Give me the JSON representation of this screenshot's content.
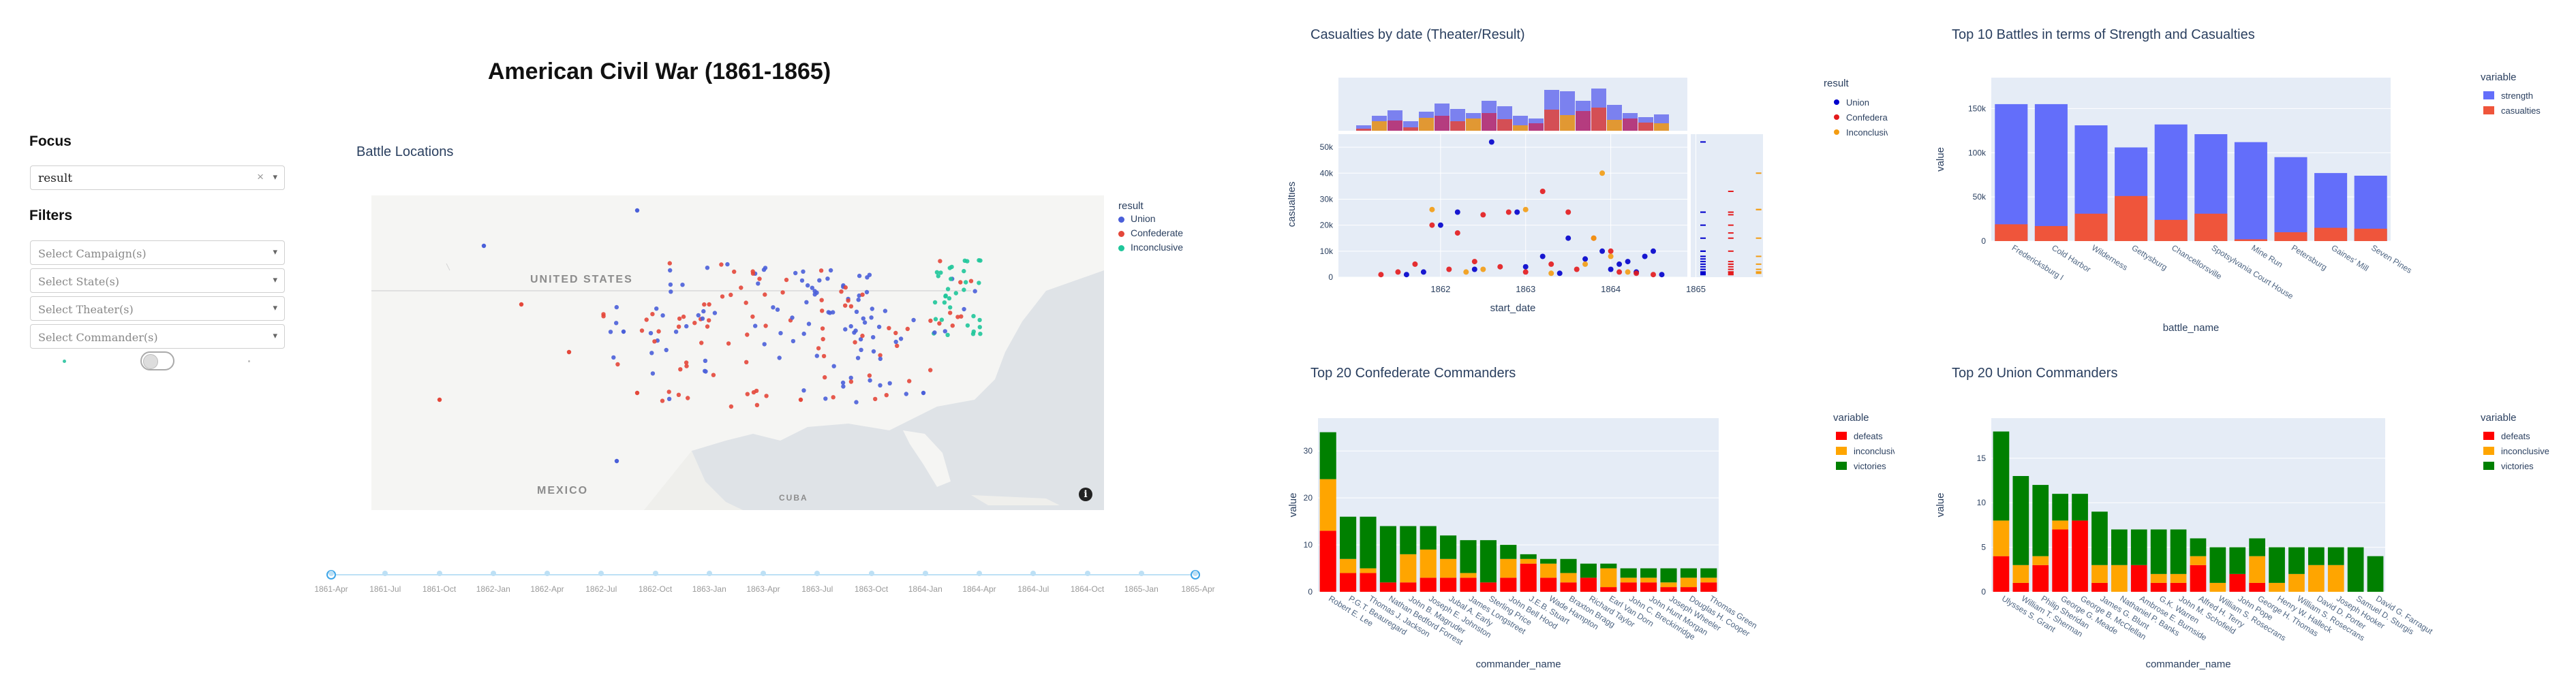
{
  "page": {
    "title": "American Civil War (1861-1865)"
  },
  "sidebar": {
    "focus_heading": "Focus",
    "focus_value": "result",
    "filters_heading": "Filters",
    "filters": [
      {
        "placeholder": "Select Campaign(s)"
      },
      {
        "placeholder": "Select State(s)"
      },
      {
        "placeholder": "Select Theater(s)"
      },
      {
        "placeholder": "Select Commander(s)"
      }
    ],
    "clear_glyph": "×",
    "caret_glyph": "▾"
  },
  "map": {
    "title": "Battle Locations",
    "labels": {
      "us": "UNITED STATES",
      "mexico": "MEXICO",
      "cuba": "CUBA"
    },
    "legend_title": "result",
    "legend": [
      {
        "name": "Union",
        "color": "#4a5fd9"
      },
      {
        "name": "Confederate",
        "color": "#e4473a"
      },
      {
        "name": "Inconclusive",
        "color": "#1fc69a"
      }
    ],
    "info_glyph": "i"
  },
  "timeline": {
    "ticks": [
      "1861-Apr",
      "1861-Jul",
      "1861-Oct",
      "1862-Jan",
      "1862-Apr",
      "1862-Jul",
      "1862-Oct",
      "1863-Jan",
      "1863-Apr",
      "1863-Jul",
      "1863-Oct",
      "1864-Jan",
      "1864-Apr",
      "1864-Jul",
      "1864-Oct",
      "1865-Jan",
      "1865-Apr"
    ]
  },
  "chart_data": [
    {
      "type": "scatter",
      "title": "Casualties by date (Theater/Result)",
      "xlabel": "start_date",
      "ylabel": "casualties",
      "x_ticks": [
        "1862",
        "1863",
        "1864",
        "1865"
      ],
      "y_ticks": [
        "0",
        "10k",
        "20k",
        "30k",
        "40k",
        "50k"
      ],
      "ylim": [
        0,
        55000
      ],
      "legend_title": "result",
      "series": [
        {
          "name": "Union",
          "color": "#0000cc",
          "points": [
            [
              1862.5,
              20000
            ],
            [
              1862.7,
              25000
            ],
            [
              1863.1,
              52000
            ],
            [
              1863.4,
              25000
            ],
            [
              1863.7,
              8000
            ],
            [
              1864.0,
              15000
            ],
            [
              1864.2,
              7000
            ],
            [
              1864.4,
              10000
            ],
            [
              1864.7,
              6000
            ],
            [
              1864.9,
              8000
            ],
            [
              1865.0,
              10000
            ],
            [
              1862.3,
              2000
            ],
            [
              1862.9,
              3000
            ],
            [
              1863.5,
              4000
            ],
            [
              1864.5,
              3000
            ],
            [
              1864.8,
              2000
            ],
            [
              1862.1,
              1000
            ],
            [
              1863.9,
              1500
            ],
            [
              1864.6,
              5000
            ],
            [
              1865.1,
              1000
            ]
          ]
        },
        {
          "name": "Confederate",
          "color": "#e31a1c",
          "points": [
            [
              1862.4,
              20000
            ],
            [
              1862.7,
              17000
            ],
            [
              1863.0,
              24000
            ],
            [
              1863.3,
              25000
            ],
            [
              1863.7,
              33000
            ],
            [
              1864.0,
              25000
            ],
            [
              1864.3,
              15000
            ],
            [
              1864.5,
              10000
            ],
            [
              1862.0,
              2000
            ],
            [
              1862.2,
              5000
            ],
            [
              1862.6,
              3000
            ],
            [
              1863.2,
              4000
            ],
            [
              1863.8,
              5000
            ],
            [
              1864.1,
              3000
            ],
            [
              1864.6,
              2000
            ],
            [
              1861.8,
              1000
            ],
            [
              1862.9,
              6000
            ],
            [
              1863.5,
              2000
            ],
            [
              1864.8,
              1500
            ],
            [
              1865.0,
              1000
            ]
          ]
        },
        {
          "name": "Inconclusive",
          "color": "#f39c12",
          "points": [
            [
              1862.4,
              26000
            ],
            [
              1863.5,
              26000
            ],
            [
              1864.3,
              15000
            ],
            [
              1864.4,
              40000
            ],
            [
              1864.5,
              8000
            ],
            [
              1863.0,
              3000
            ],
            [
              1862.8,
              2000
            ],
            [
              1864.2,
              5000
            ],
            [
              1863.8,
              1500
            ],
            [
              1864.7,
              2000
            ]
          ]
        }
      ],
      "histogram_colors": [
        "#6f75ee",
        "#e4473a",
        "#f39c12",
        "#c0306b"
      ]
    },
    {
      "type": "bar",
      "title": "Top 10 Battles in terms of Strength and Casualties",
      "xlabel": "battle_name",
      "ylabel": "value",
      "categories": [
        "Fredericksburg I",
        "Cold Harbor",
        "Wilderness",
        "Gettysburg",
        "Chancellorsville",
        "Spotsylvania Court House",
        "Mine Run",
        "Petersburg",
        "Gaines' Mill",
        "Seven Pines"
      ],
      "series": [
        {
          "name": "strength",
          "color": "#636efa",
          "values": [
            155000,
            155000,
            131000,
            106000,
            132000,
            121000,
            112000,
            95000,
            77000,
            74000
          ]
        },
        {
          "name": "casualties",
          "color": "#ef553b",
          "values": [
            19000,
            17000,
            31000,
            51000,
            24000,
            31000,
            2000,
            10000,
            15000,
            14000
          ]
        }
      ],
      "y_ticks": [
        "0",
        "50k",
        "100k",
        "150k"
      ],
      "ylim": [
        0,
        185000
      ],
      "legend_title": "variable"
    },
    {
      "type": "bar",
      "title": "Top 20 Confederate Commanders",
      "xlabel": "commander_name",
      "ylabel": "value",
      "categories": [
        "Robert E. Lee",
        "P.G.T. Beauregard",
        "Thomas J. Jackson",
        "Nathan Bedford Forrest",
        "John B. Magruder",
        "Joseph E. Johnston",
        "Jubal A. Early",
        "James Longstreet",
        "Sterling Price",
        "John Bell Hood",
        "J.E.B. Stuart",
        "Wade Hampton",
        "Braxton Bragg",
        "Richard Taylor",
        "Earl Van Dorn",
        "John C. Breckinridge",
        "John Hunt Morgan",
        "Joseph Wheeler",
        "Douglas H. Cooper",
        "Thomas Green"
      ],
      "series": [
        {
          "name": "defeats",
          "color": "#ff0000",
          "values": [
            13,
            4,
            4,
            2,
            2,
            3,
            3,
            3,
            2,
            3,
            6,
            3,
            2,
            3,
            1,
            2,
            2,
            1,
            1,
            2
          ]
        },
        {
          "name": "inconclusive",
          "color": "#ffa500",
          "values": [
            11,
            3,
            1,
            0,
            6,
            6,
            4,
            1,
            0,
            4,
            1,
            3,
            2,
            0,
            4,
            1,
            1,
            1,
            2,
            1
          ]
        },
        {
          "name": "victories",
          "color": "#008000",
          "values": [
            10,
            9,
            11,
            12,
            6,
            5,
            5,
            7,
            9,
            3,
            1,
            1,
            3,
            3,
            1,
            2,
            2,
            3,
            2,
            2
          ]
        }
      ],
      "y_ticks": [
        "0",
        "10",
        "20",
        "30"
      ],
      "ylim": [
        0,
        37
      ],
      "legend_title": "variable"
    },
    {
      "type": "bar",
      "title": "Top 20 Union Commanders",
      "xlabel": "commander_name",
      "ylabel": "value",
      "categories": [
        "Ulysses S. Grant",
        "William T. Sherman",
        "Philip Sheridan",
        "George G. Meade",
        "George B. McClellan",
        "James G. Blunt",
        "Nathaniel P. Banks",
        "Ambrose E. Burnside",
        "G.K. Warren",
        "John M. Schofield",
        "Alfred H. Terry",
        "William S. Rosecrans",
        "John Pope",
        "George H. Thomas",
        "Henry W. Halleck",
        "William S. Rosecrans",
        "David D. Porter",
        "Joseph Hooker",
        "Samuel D. Sturgis",
        "David G. Farragut"
      ],
      "series": [
        {
          "name": "defeats",
          "color": "#ff0000",
          "values": [
            4,
            1,
            3,
            7,
            8,
            1,
            0,
            3,
            1,
            1,
            3,
            0,
            2,
            1,
            0,
            0,
            0,
            0,
            0,
            0
          ]
        },
        {
          "name": "inconclusive",
          "color": "#ffa500",
          "values": [
            4,
            2,
            1,
            1,
            0,
            2,
            3,
            0,
            1,
            1,
            1,
            1,
            0,
            3,
            1,
            2,
            3,
            3,
            0,
            0
          ]
        },
        {
          "name": "victories",
          "color": "#008000",
          "values": [
            10,
            10,
            8,
            3,
            3,
            6,
            4,
            4,
            5,
            5,
            2,
            4,
            3,
            2,
            4,
            3,
            2,
            2,
            5,
            4
          ]
        }
      ],
      "y_ticks": [
        "0",
        "5",
        "10",
        "15"
      ],
      "ylim": [
        0,
        19.5
      ],
      "legend_title": "variable"
    }
  ]
}
